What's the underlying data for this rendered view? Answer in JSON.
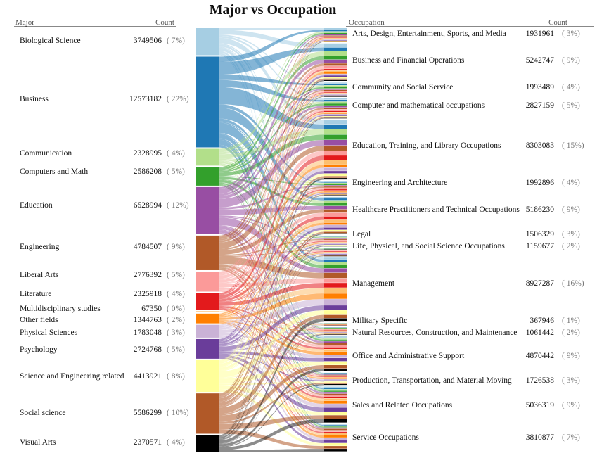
{
  "chart_data": {
    "type": "bipartite",
    "title": "Major vs Occupation",
    "left_header": {
      "label": "Major",
      "count_label": "Count"
    },
    "right_header": {
      "label": "Occupation",
      "count_label": "Count"
    },
    "majors": [
      {
        "name": "Biological Science",
        "count": "3749506",
        "pct": "( 7%)",
        "color": "#a6cee3"
      },
      {
        "name": "Business",
        "count": "12573182",
        "pct": "( 22%)",
        "color": "#1f78b4"
      },
      {
        "name": "Communication",
        "count": "2328995",
        "pct": "( 4%)",
        "color": "#b2df8a"
      },
      {
        "name": "Computers and Math",
        "count": "2586208",
        "pct": "( 5%)",
        "color": "#33a02c"
      },
      {
        "name": "Education",
        "count": "6528994",
        "pct": "( 12%)",
        "color": "#984ea3"
      },
      {
        "name": "Engineering",
        "count": "4784507",
        "pct": "( 9%)",
        "color": "#b15928"
      },
      {
        "name": "Liberal Arts",
        "count": "2776392",
        "pct": "( 5%)",
        "color": "#fb9a99"
      },
      {
        "name": "Literature",
        "count": "2325918",
        "pct": "( 4%)",
        "color": "#e31a1c"
      },
      {
        "name": "Multidisciplinary studies",
        "count": "67350",
        "pct": "( 0%)",
        "color": "#fdbf6f"
      },
      {
        "name": "Other fields",
        "count": "1344763",
        "pct": "( 2%)",
        "color": "#ff7f00"
      },
      {
        "name": "Physical Sciences",
        "count": "1783048",
        "pct": "( 3%)",
        "color": "#cab2d6"
      },
      {
        "name": "Psychology",
        "count": "2724768",
        "pct": "( 5%)",
        "color": "#6a3d9a"
      },
      {
        "name": "Science and Engineering related",
        "count": "4413921",
        "pct": "( 8%)",
        "color": "#ffff99"
      },
      {
        "name": "Social science",
        "count": "5586299",
        "pct": "( 10%)",
        "color": "#b15928"
      },
      {
        "name": "Visual Arts",
        "count": "2370571",
        "pct": "( 4%)",
        "color": "#000000"
      }
    ],
    "occupations": [
      {
        "name": "Arts, Design, Entertainment, Sports, and Media",
        "count": "1931961",
        "pct": "( 3%)"
      },
      {
        "name": "Business and Financial Operations",
        "count": "5242747",
        "pct": "( 9%)"
      },
      {
        "name": "Community and Social Service",
        "count": "1993489",
        "pct": "( 4%)"
      },
      {
        "name": "Computer and mathematical occupations",
        "count": "2827159",
        "pct": "( 5%)"
      },
      {
        "name": "Education, Training, and Library Occupations",
        "count": "8303083",
        "pct": "( 15%)"
      },
      {
        "name": "Engineering and Architecture",
        "count": "1992896",
        "pct": "( 4%)"
      },
      {
        "name": "Healthcare Practitioners and Technical Occupations",
        "count": "5186230",
        "pct": "( 9%)"
      },
      {
        "name": "Legal",
        "count": "1506329",
        "pct": "( 3%)"
      },
      {
        "name": "Life, Physical, and Social Science Occupations",
        "count": "1159677",
        "pct": "( 2%)"
      },
      {
        "name": "Management",
        "count": "8927287",
        "pct": "( 16%)"
      },
      {
        "name": "Military Specific",
        "count": "367946",
        "pct": "( 1%)"
      },
      {
        "name": "Natural Resources, Construction, and Maintenance",
        "count": "1061442",
        "pct": "( 2%)"
      },
      {
        "name": "Office and Administrative Support",
        "count": "4870442",
        "pct": "( 9%)"
      },
      {
        "name": "Production, Transportation, and Material Moving",
        "count": "1726538",
        "pct": "( 3%)"
      },
      {
        "name": "Sales and Related Occupations",
        "count": "5036319",
        "pct": "( 9%)"
      },
      {
        "name": "Service Occupations",
        "count": "3810877",
        "pct": "( 7%)"
      }
    ]
  }
}
